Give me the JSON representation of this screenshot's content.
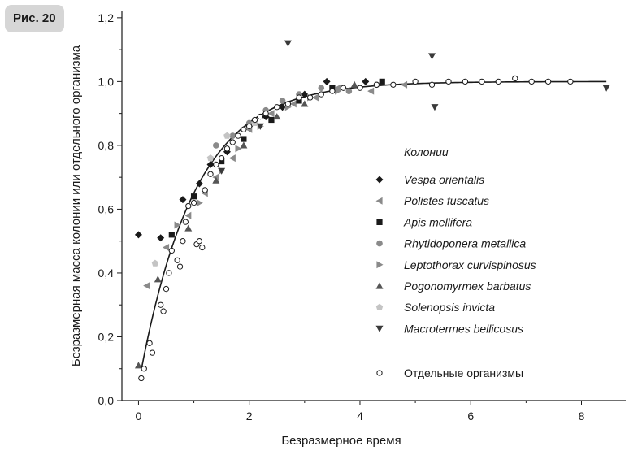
{
  "figure_label": "Рис. 20",
  "chart_data": {
    "type": "scatter",
    "title": "",
    "xlabel": "Безразмерное время",
    "ylabel": "Безразмерная масса колонии или отдельного организма",
    "xlim": [
      -0.3,
      8.8
    ],
    "ylim": [
      0,
      1.22
    ],
    "x_ticks": [
      0,
      2,
      4,
      6,
      8
    ],
    "x_tick_labels": [
      "0",
      "2",
      "4",
      "6",
      "8"
    ],
    "y_ticks": [
      0,
      0.2,
      0.4,
      0.6,
      0.8,
      1.0,
      1.2
    ],
    "y_tick_labels": [
      "0,0",
      "0,2",
      "0,4",
      "0,6",
      "0,8",
      "1,0",
      "1,2"
    ],
    "legend_title": "Колонии",
    "legend_organisms_label": "Отдельные организмы",
    "fit_curve": {
      "name": "model",
      "x_start": 0.05,
      "x_end": 8.45,
      "formula": "1 - 0.95*exp(-x)"
    },
    "series": [
      {
        "name": "Vespa orientalis",
        "marker": "diamond",
        "color": "#1a1a1a",
        "x": [
          0.0,
          0.4,
          0.8,
          1.1,
          1.3,
          1.6,
          2.0,
          2.3,
          2.6,
          3.0,
          3.4,
          4.1
        ],
        "y": [
          0.52,
          0.51,
          0.63,
          0.68,
          0.74,
          0.78,
          0.86,
          0.89,
          0.92,
          0.96,
          1.0,
          1.0
        ]
      },
      {
        "name": "Polistes fuscatus",
        "marker": "triangle-left",
        "color": "#8a8a8a",
        "x": [
          0.15,
          0.5,
          0.9,
          1.2,
          1.4,
          1.7,
          2.0,
          2.4,
          2.8,
          3.2,
          3.6,
          4.2,
          4.8
        ],
        "y": [
          0.36,
          0.48,
          0.58,
          0.65,
          0.7,
          0.76,
          0.85,
          0.9,
          0.93,
          0.95,
          0.98,
          0.97,
          0.99
        ]
      },
      {
        "name": "Apis mellifera",
        "marker": "square",
        "color": "#1a1a1a",
        "x": [
          0.6,
          1.0,
          1.5,
          1.9,
          2.4,
          2.9,
          3.5,
          4.4
        ],
        "y": [
          0.52,
          0.64,
          0.75,
          0.82,
          0.88,
          0.94,
          0.98,
          1.0
        ]
      },
      {
        "name": "Rhytidoponera metallica",
        "marker": "circle",
        "color": "#8a8a8a",
        "x": [
          1.4,
          1.7,
          2.0,
          2.3,
          2.6,
          2.9,
          3.3,
          3.8,
          4.3
        ],
        "y": [
          0.8,
          0.83,
          0.87,
          0.91,
          0.94,
          0.96,
          0.98,
          0.97,
          0.99
        ]
      },
      {
        "name": "Leptothorax curvispinosus",
        "marker": "triangle-right",
        "color": "#8a8a8a",
        "x": [
          0.7,
          1.1,
          1.5,
          1.8,
          2.2,
          2.7,
          3.1,
          3.6
        ],
        "y": [
          0.55,
          0.62,
          0.72,
          0.79,
          0.86,
          0.92,
          0.95,
          0.97
        ]
      },
      {
        "name": "Pogonomyrmex barbatus",
        "marker": "triangle-up",
        "color": "#555555",
        "x": [
          0.0,
          0.35,
          0.9,
          1.4,
          1.9,
          2.5,
          3.0,
          3.9
        ],
        "y": [
          0.11,
          0.38,
          0.54,
          0.69,
          0.8,
          0.89,
          0.93,
          0.99
        ]
      },
      {
        "name": "Solenopsis invicta",
        "marker": "pentagon",
        "color": "#c4c4c4",
        "x": [
          0.3,
          1.3,
          1.6,
          2.1
        ],
        "y": [
          0.43,
          0.76,
          0.83,
          0.87
        ]
      },
      {
        "name": "Macrotermes bellicosus",
        "marker": "triangle-down",
        "color": "#3a3a3a",
        "x": [
          2.7,
          5.3,
          5.35,
          8.45,
          1.5,
          2.2
        ],
        "y": [
          1.12,
          1.08,
          0.92,
          0.98,
          0.72,
          0.86
        ]
      },
      {
        "name": "Отдельные организмы",
        "marker": "open-circle",
        "color": "#1a1a1a",
        "x": [
          0.05,
          0.1,
          0.2,
          0.25,
          0.4,
          0.45,
          0.5,
          0.55,
          0.6,
          0.7,
          0.75,
          0.8,
          0.85,
          0.9,
          1.0,
          1.05,
          1.1,
          1.15,
          1.2,
          1.3,
          1.4,
          1.5,
          1.6,
          1.7,
          1.8,
          1.9,
          2.0,
          2.1,
          2.2,
          2.3,
          2.5,
          2.7,
          2.9,
          3.1,
          3.3,
          3.5,
          3.7,
          4.0,
          4.3,
          4.6,
          5.0,
          5.3,
          5.6,
          5.9,
          6.2,
          6.5,
          6.8,
          7.1,
          7.4,
          7.8
        ],
        "y": [
          0.07,
          0.1,
          0.18,
          0.15,
          0.3,
          0.28,
          0.35,
          0.4,
          0.47,
          0.44,
          0.42,
          0.5,
          0.56,
          0.61,
          0.62,
          0.49,
          0.5,
          0.48,
          0.66,
          0.71,
          0.74,
          0.76,
          0.79,
          0.81,
          0.83,
          0.85,
          0.86,
          0.88,
          0.89,
          0.9,
          0.92,
          0.93,
          0.95,
          0.95,
          0.96,
          0.97,
          0.98,
          0.98,
          0.99,
          0.99,
          1.0,
          0.99,
          1.0,
          1.0,
          1.0,
          1.0,
          1.01,
          1.0,
          1.0,
          1.0
        ]
      }
    ]
  }
}
